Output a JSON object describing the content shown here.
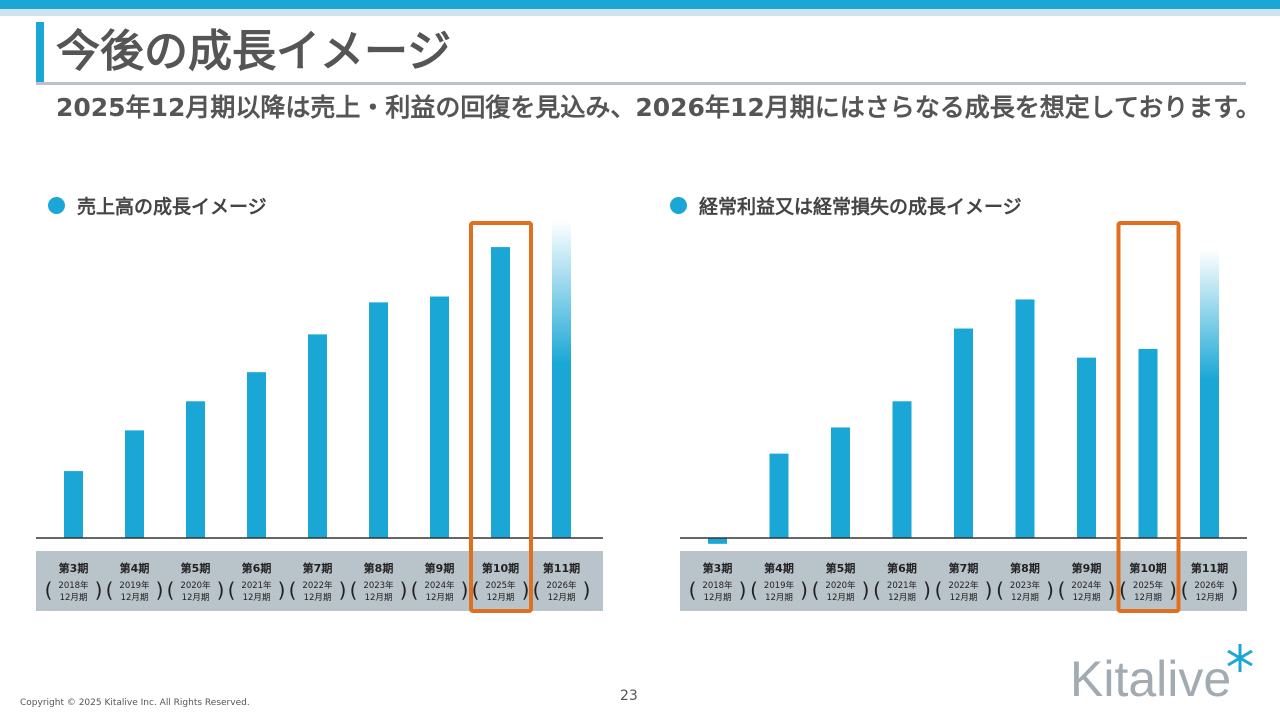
{
  "header": {
    "title": "今後の成長イメージ",
    "subtitle": "2025年12月期以降は売上・利益の回復を見込み、2026年12月期にはさらなる成長を想定しております。"
  },
  "colors": {
    "bar": "#1aa7d6",
    "highlight": "#e07020",
    "label_band": "#b9c3ca",
    "accent": "#1aa7d6"
  },
  "chart_data": [
    {
      "type": "bar",
      "title": "売上高の成長イメージ",
      "categories": [
        "第3期",
        "第4期",
        "第5期",
        "第6期",
        "第7期",
        "第8期",
        "第9期",
        "第10期",
        "第11期"
      ],
      "years": [
        "2018年",
        "2019年",
        "2020年",
        "2021年",
        "2022年",
        "2023年",
        "2024年",
        "2025年",
        "2026年"
      ],
      "period": "12月期",
      "values": [
        23,
        37,
        47,
        57,
        70,
        81,
        83,
        100,
        109
      ],
      "projection_index": 8,
      "highlight_index": 7,
      "ylim": [
        0,
        110
      ],
      "yaxis_visible": false
    },
    {
      "type": "bar",
      "title": "経常利益又は経常損失の成長イメージ",
      "categories": [
        "第3期",
        "第4期",
        "第5期",
        "第6期",
        "第7期",
        "第8期",
        "第9期",
        "第10期",
        "第11期"
      ],
      "years": [
        "2018年",
        "2019年",
        "2020年",
        "2021年",
        "2022年",
        "2023年",
        "2024年",
        "2025年",
        "2026年"
      ],
      "period": "12月期",
      "values": [
        -2,
        29,
        38,
        47,
        72,
        82,
        62,
        65,
        99
      ],
      "projection_index": 8,
      "highlight_index": 7,
      "ylim": [
        -5,
        110
      ],
      "yaxis_visible": false
    }
  ],
  "footer": {
    "copyright": "Copyright © 2025 Kitalive Inc. All Rights Reserved.",
    "page_number": "23",
    "logo_text": "Kitalive"
  }
}
